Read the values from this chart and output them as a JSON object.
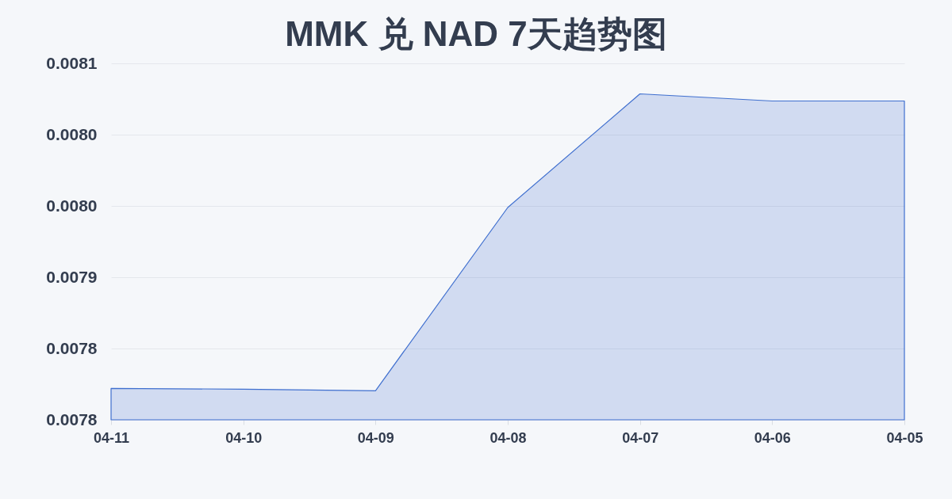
{
  "chart_data": {
    "type": "area",
    "title": "MMK 兑 NAD 7天趋势图",
    "categories": [
      "04-11",
      "04-10",
      "04-09",
      "04-08",
      "04-07",
      "04-06",
      "04-05"
    ],
    "series": [
      {
        "color": "#3f6fcf",
        "values": [
          0.007822,
          0.0078215,
          0.0078204,
          0.0079489,
          0.0080286,
          0.0080236,
          0.0080236
        ]
      }
    ],
    "ylim": [
      0.0078,
      0.00805
    ],
    "yticks": [
      {
        "value": 0.0078,
        "label": "0.0078"
      },
      {
        "value": 0.00785,
        "label": "0.0078"
      },
      {
        "value": 0.0079,
        "label": "0.0079"
      },
      {
        "value": 0.00795,
        "label": "0.0080"
      },
      {
        "value": 0.008,
        "label": "0.0080"
      },
      {
        "value": 0.00805,
        "label": "0.0081"
      }
    ],
    "grid": "y",
    "line_style": "solid"
  }
}
